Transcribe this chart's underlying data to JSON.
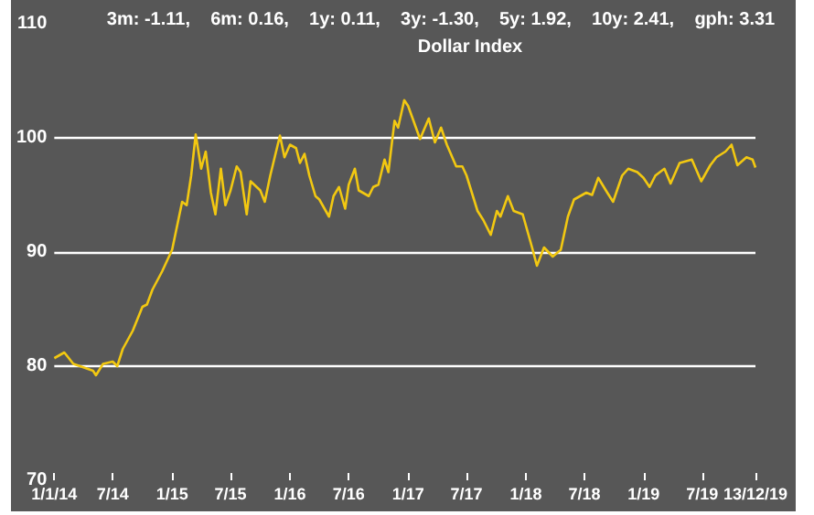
{
  "chart_data": {
    "type": "line",
    "title": "Dollar Index",
    "subtitle": "3m: -1.11,    6m: 0.16,    1y: 0.11,    3y: -1.30,    5y: 1.92,    10y: 2.41,    gph: 3.31",
    "x": [
      "2014-01-01",
      "2014-02-01",
      "2014-03-01",
      "2014-04-01",
      "2014-05-01",
      "2014-05-10",
      "2014-06-01",
      "2014-07-01",
      "2014-07-15",
      "2014-08-01",
      "2014-09-01",
      "2014-10-01",
      "2014-10-15",
      "2014-11-01",
      "2014-12-01",
      "2015-01-01",
      "2015-02-01",
      "2015-02-15",
      "2015-03-01",
      "2015-03-15",
      "2015-04-01",
      "2015-04-15",
      "2015-05-01",
      "2015-05-15",
      "2015-06-01",
      "2015-06-15",
      "2015-07-01",
      "2015-07-20",
      "2015-08-01",
      "2015-08-20",
      "2015-09-01",
      "2015-10-01",
      "2015-10-15",
      "2015-11-01",
      "2015-12-01",
      "2015-12-15",
      "2016-01-01",
      "2016-01-20",
      "2016-02-01",
      "2016-02-15",
      "2016-03-01",
      "2016-03-20",
      "2016-04-01",
      "2016-05-01",
      "2016-05-15",
      "2016-06-01",
      "2016-06-20",
      "2016-07-01",
      "2016-07-20",
      "2016-08-01",
      "2016-09-01",
      "2016-09-15",
      "2016-10-01",
      "2016-10-20",
      "2016-11-01",
      "2016-11-20",
      "2016-12-01",
      "2016-12-20",
      "2017-01-01",
      "2017-02-07",
      "2017-03-06",
      "2017-03-25",
      "2017-04-13",
      "2017-05-01",
      "2017-05-30",
      "2017-06-18",
      "2017-07-01",
      "2017-08-04",
      "2017-08-22",
      "2017-09-14",
      "2017-10-03",
      "2017-10-14",
      "2017-11-06",
      "2017-11-24",
      "2017-12-22",
      "2018-01-20",
      "2018-02-04",
      "2018-02-26",
      "2018-03-25",
      "2018-04-19",
      "2018-05-11",
      "2018-05-30",
      "2018-07-07",
      "2018-07-25",
      "2018-08-13",
      "2018-09-10",
      "2018-09-28",
      "2018-10-26",
      "2018-11-14",
      "2018-12-12",
      "2018-12-31",
      "2019-01-19",
      "2019-02-06",
      "2019-03-06",
      "2019-03-25",
      "2019-04-22",
      "2019-05-30",
      "2019-06-28",
      "2019-07-26",
      "2019-08-14",
      "2019-09-11",
      "2019-09-30",
      "2019-10-18",
      "2019-11-15",
      "2019-12-04",
      "2019-12-13"
    ],
    "series": [
      {
        "color": "#f2c811",
        "values": [
          80.7,
          81.2,
          80.2,
          79.9,
          79.6,
          79.2,
          80.2,
          80.4,
          80.0,
          81.5,
          83.1,
          85.2,
          85.4,
          86.7,
          88.3,
          90.2,
          94.4,
          94.1,
          96.7,
          100.3,
          97.3,
          98.8,
          95.2,
          93.3,
          97.3,
          94.1,
          95.4,
          97.5,
          97.0,
          93.3,
          96.2,
          95.4,
          94.4,
          96.7,
          100.2,
          98.3,
          99.4,
          99.1,
          97.8,
          98.6,
          96.7,
          94.9,
          94.6,
          93.1,
          94.9,
          95.7,
          93.8,
          95.9,
          97.3,
          95.4,
          94.9,
          95.7,
          95.9,
          98.1,
          97.0,
          101.5,
          100.9,
          103.3,
          102.8,
          99.9,
          101.7,
          99.6,
          100.9,
          99.4,
          97.5,
          97.5,
          96.7,
          93.6,
          92.8,
          91.5,
          93.6,
          93.1,
          94.9,
          93.6,
          93.3,
          90.4,
          88.8,
          90.4,
          89.6,
          90.2,
          93.1,
          94.6,
          95.2,
          95.0,
          96.5,
          95.2,
          94.4,
          96.7,
          97.3,
          97.0,
          96.5,
          95.7,
          96.7,
          97.3,
          96.0,
          97.8,
          98.1,
          96.2,
          97.6,
          98.3,
          98.8,
          99.4,
          97.6,
          98.3,
          98.1,
          97.4
        ]
      }
    ],
    "xlim": [
      "2014-01-01",
      "2019-12-13"
    ],
    "xticks": [
      {
        "value": "2014-01-01",
        "label": "1/1/14"
      },
      {
        "value": "2014-07-01",
        "label": "7/14"
      },
      {
        "value": "2015-01-01",
        "label": "1/15"
      },
      {
        "value": "2015-07-01",
        "label": "7/15"
      },
      {
        "value": "2016-01-01",
        "label": "1/16"
      },
      {
        "value": "2016-07-01",
        "label": "7/16"
      },
      {
        "value": "2017-01-01",
        "label": "1/17"
      },
      {
        "value": "2017-07-01",
        "label": "7/17"
      },
      {
        "value": "2018-01-01",
        "label": "1/18"
      },
      {
        "value": "2018-07-01",
        "label": "7/18"
      },
      {
        "value": "2019-01-01",
        "label": "1/19"
      },
      {
        "value": "2019-07-01",
        "label": "7/19"
      },
      {
        "value": "2019-12-13",
        "label": "13/12/19"
      }
    ],
    "ylim": [
      70,
      110
    ],
    "yticks": [
      70,
      80,
      90,
      100,
      110
    ],
    "grid": "y",
    "marker": "none",
    "line_style": "solid"
  }
}
